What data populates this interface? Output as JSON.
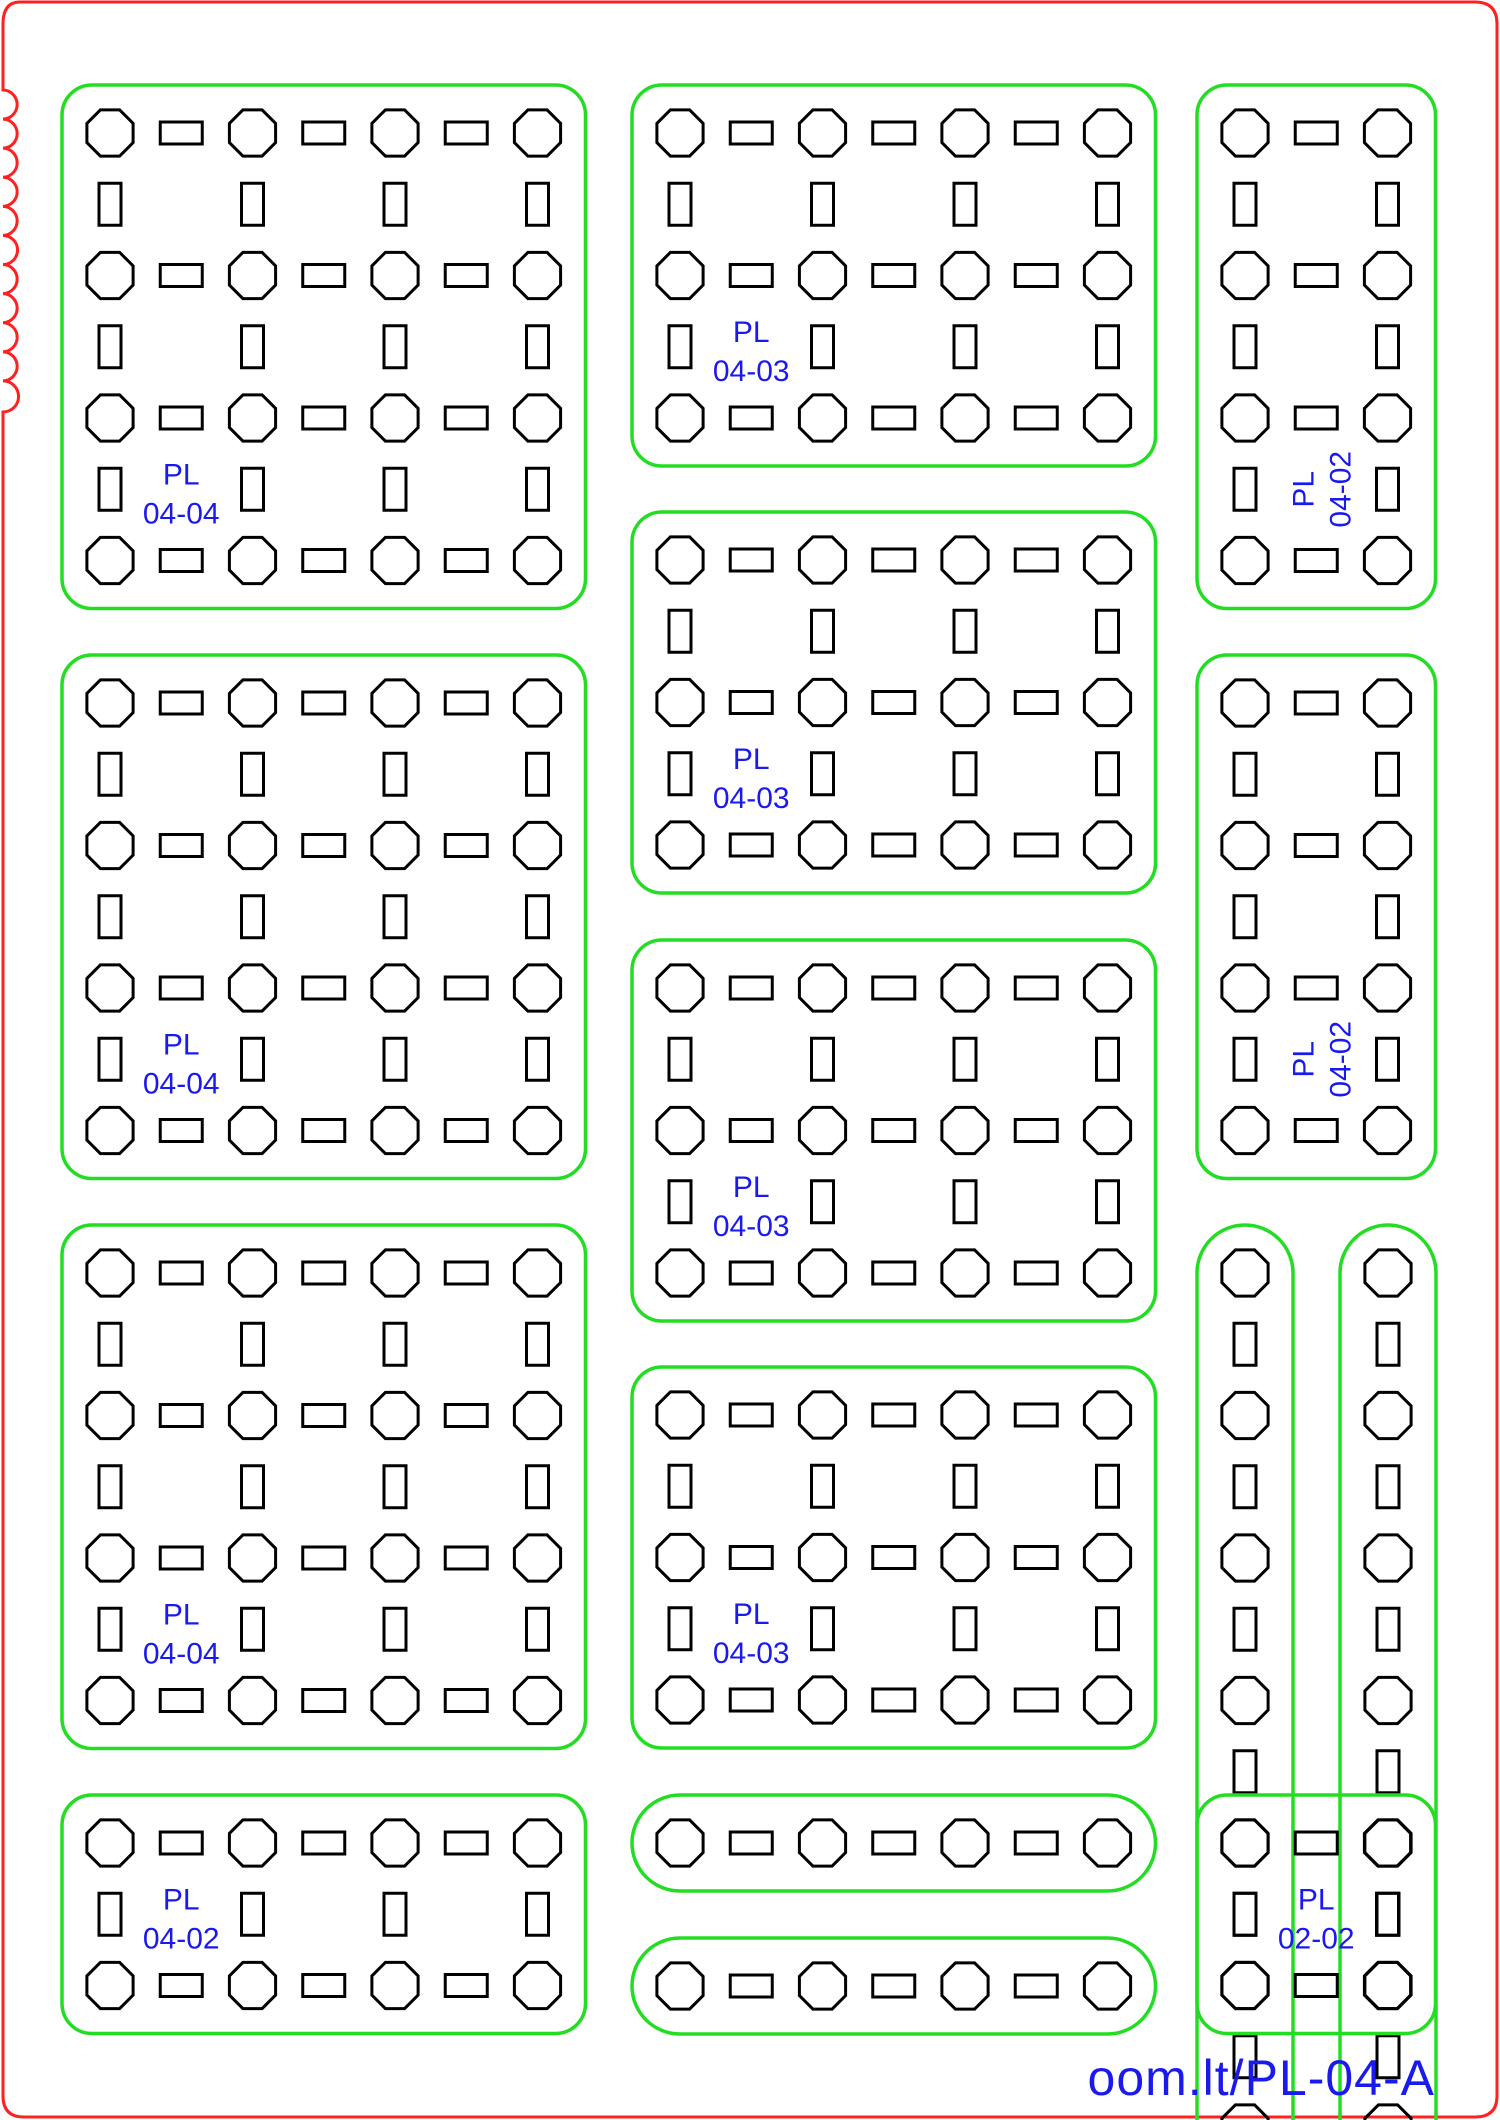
{
  "colors": {
    "sheet_border": "#ff2020",
    "part_outline": "#22dd22",
    "holes": "#000000",
    "labels": "#1a1aee"
  },
  "footer": "oom.lt/PL-04-A",
  "parts": [
    {
      "id": "part-1",
      "type": "plate",
      "columns": 4,
      "rows": 4,
      "label": [
        "PL",
        "04-04"
      ]
    },
    {
      "id": "part-2",
      "type": "plate",
      "columns": 4,
      "rows": 3,
      "label": [
        "PL",
        "04-03"
      ]
    },
    {
      "id": "part-3",
      "type": "plate",
      "columns": 2,
      "rows": 4,
      "label": [
        "PL",
        "04-02"
      ],
      "label_rotated": true
    },
    {
      "id": "part-4",
      "type": "plate",
      "columns": 4,
      "rows": 3,
      "label": [
        "PL",
        "04-03"
      ]
    },
    {
      "id": "part-5",
      "type": "plate",
      "columns": 4,
      "rows": 4,
      "label": [
        "PL",
        "04-04"
      ]
    },
    {
      "id": "part-6",
      "type": "plate",
      "columns": 2,
      "rows": 4,
      "label": [
        "PL",
        "04-02"
      ],
      "label_rotated": true
    },
    {
      "id": "part-7",
      "type": "plate",
      "columns": 4,
      "rows": 3,
      "label": [
        "PL",
        "04-03"
      ]
    },
    {
      "id": "part-8",
      "type": "plate",
      "columns": 4,
      "rows": 4,
      "label": [
        "PL",
        "04-04"
      ]
    },
    {
      "id": "part-9",
      "type": "strip",
      "columns": 1,
      "rows": 7
    },
    {
      "id": "part-10",
      "type": "strip",
      "columns": 1,
      "rows": 7
    },
    {
      "id": "part-11",
      "type": "plate",
      "columns": 4,
      "rows": 3,
      "label": [
        "PL",
        "04-03"
      ]
    },
    {
      "id": "part-12",
      "type": "plate",
      "columns": 4,
      "rows": 2,
      "label": [
        "PL",
        "04-02"
      ]
    },
    {
      "id": "part-13",
      "type": "strip",
      "columns": 4,
      "rows": 1
    },
    {
      "id": "part-14",
      "type": "strip",
      "columns": 4,
      "rows": 1
    },
    {
      "id": "part-15",
      "type": "plate",
      "columns": 2,
      "rows": 2,
      "label": [
        "PL",
        "02-02"
      ]
    }
  ]
}
